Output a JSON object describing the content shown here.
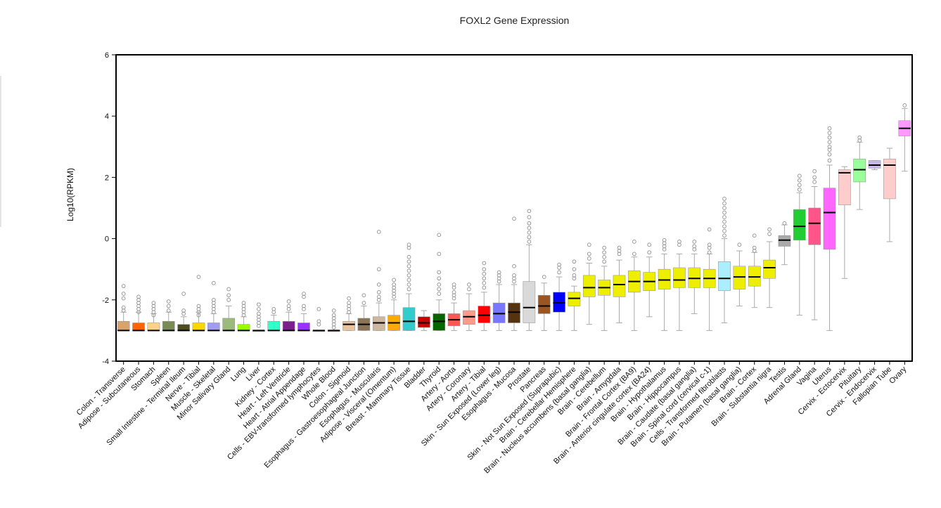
{
  "chart_data": {
    "type": "box",
    "title": "FOXL2 Gene Expression",
    "xlabel": "",
    "ylabel": "Log10(RPKM)",
    "ylim": [
      -4,
      6
    ],
    "yticks": [
      -4,
      -2,
      0,
      2,
      4,
      6
    ],
    "grid": false,
    "legend": "none",
    "series": [
      {
        "name": "Colon - Transverse",
        "color": "#d9a46c",
        "q1": -3.0,
        "median": -3.0,
        "q3": -2.7,
        "whisker_low": -3.0,
        "whisker_high": -2.4,
        "outliers": [
          -1.55,
          -1.8,
          -1.95,
          -2.25,
          -2.35
        ]
      },
      {
        "name": "Adipose - Subcutaneous",
        "color": "#ff6600",
        "q1": -3.0,
        "median": -3.0,
        "q3": -2.75,
        "whisker_low": -3.0,
        "whisker_high": -2.4,
        "outliers": [
          -1.9,
          -2.0,
          -2.1,
          -2.2,
          -2.3,
          -2.4
        ]
      },
      {
        "name": "Stomach",
        "color": "#ffd18a",
        "q1": -3.0,
        "median": -3.0,
        "q3": -2.75,
        "whisker_low": -3.0,
        "whisker_high": -2.45,
        "outliers": [
          -2.1,
          -2.2,
          -2.3,
          -2.4,
          -2.5
        ]
      },
      {
        "name": "Spleen",
        "color": "#7a8c55",
        "q1": -3.0,
        "median": -3.0,
        "q3": -2.7,
        "whisker_low": -3.0,
        "whisker_high": -2.4,
        "outliers": [
          -2.05,
          -2.2,
          -2.35
        ]
      },
      {
        "name": "Small Intestine - Terminal Ileum",
        "color": "#4d4d1f",
        "q1": -3.0,
        "median": -3.0,
        "q3": -2.8,
        "whisker_low": -3.0,
        "whisker_high": -2.55,
        "outliers": [
          -1.8,
          -2.35,
          -2.45
        ]
      },
      {
        "name": "Nerve - Tibial",
        "color": "#ffd700",
        "q1": -3.0,
        "median": -3.0,
        "q3": -2.75,
        "whisker_low": -3.0,
        "whisker_high": -2.4,
        "outliers": [
          -1.25,
          -2.2,
          -2.3,
          -2.4,
          -2.5
        ]
      },
      {
        "name": "Muscle - Skeletal",
        "color": "#a09cf0",
        "q1": -3.0,
        "median": -3.0,
        "q3": -2.75,
        "whisker_low": -3.0,
        "whisker_high": -2.45,
        "outliers": [
          -1.45,
          -2.0,
          -2.1,
          -2.2,
          -2.3,
          -2.4
        ]
      },
      {
        "name": "Minor Salivary Gland",
        "color": "#9bbb7a",
        "q1": -3.0,
        "median": -3.0,
        "q3": -2.6,
        "whisker_low": -3.0,
        "whisker_high": -2.2,
        "outliers": [
          -1.65,
          -1.85,
          -2.0
        ]
      },
      {
        "name": "Lung",
        "color": "#99ff00",
        "q1": -3.0,
        "median": -3.0,
        "q3": -2.8,
        "whisker_low": -3.0,
        "whisker_high": -2.55,
        "outliers": [
          -2.1,
          -2.2,
          -2.3,
          -2.4,
          -2.5
        ]
      },
      {
        "name": "Liver",
        "color": "#c0c0a0",
        "q1": -3.0,
        "median": -3.0,
        "q3": -3.0,
        "whisker_low": -3.0,
        "whisker_high": -3.0,
        "outliers": [
          -2.15,
          -2.3,
          -2.45,
          -2.55,
          -2.65,
          -2.75,
          -2.85
        ]
      },
      {
        "name": "Kidney - Cortex",
        "color": "#33ffcc",
        "q1": -3.0,
        "median": -3.0,
        "q3": -2.7,
        "whisker_low": -3.0,
        "whisker_high": -2.5,
        "outliers": [
          -2.3,
          -2.4
        ]
      },
      {
        "name": "Heart - Left Ventricle",
        "color": "#7a1f8c",
        "q1": -3.0,
        "median": -3.0,
        "q3": -2.7,
        "whisker_low": -3.0,
        "whisker_high": -2.4,
        "outliers": [
          -2.05,
          -2.2,
          -2.3
        ]
      },
      {
        "name": "Heart - Atrial Appendage",
        "color": "#9933ff",
        "q1": -3.0,
        "median": -3.0,
        "q3": -2.75,
        "whisker_low": -3.0,
        "whisker_high": -2.45,
        "outliers": [
          -1.8,
          -1.9,
          -2.2,
          -2.3
        ]
      },
      {
        "name": "Cells - EBV-transformed lymphocytes",
        "color": "#ff66cc",
        "q1": -3.0,
        "median": -3.0,
        "q3": -3.0,
        "whisker_low": -3.0,
        "whisker_high": -3.0,
        "outliers": [
          -2.3,
          -2.7,
          -2.8
        ]
      },
      {
        "name": "Whole Blood",
        "color": "#ff33ff",
        "q1": -3.0,
        "median": -3.0,
        "q3": -3.0,
        "whisker_low": -3.0,
        "whisker_high": -3.0,
        "outliers": [
          -2.35,
          -2.5,
          -2.6,
          -2.7,
          -2.8,
          -2.9
        ]
      },
      {
        "name": "Colon - Sigmoid",
        "color": "#e8c39e",
        "q1": -3.0,
        "median": -2.8,
        "q3": -2.7,
        "whisker_low": -3.0,
        "whisker_high": -2.45,
        "outliers": [
          -1.95,
          -2.1,
          -2.2,
          -2.3,
          -2.4
        ]
      },
      {
        "name": "Esophagus - Gastroesophageal Junction",
        "color": "#8b7355",
        "q1": -3.0,
        "median": -2.8,
        "q3": -2.6,
        "whisker_low": -3.0,
        "whisker_high": -2.2,
        "outliers": [
          -1.85,
          -2.1
        ]
      },
      {
        "name": "Esophagus - Muscularis",
        "color": "#cdb79e",
        "q1": -3.0,
        "median": -2.75,
        "q3": -2.55,
        "whisker_low": -3.0,
        "whisker_high": -2.1,
        "outliers": [
          0.22,
          -1.0,
          -1.5,
          -1.75,
          -1.9,
          -2.0
        ]
      },
      {
        "name": "Adipose - Visceral (Omentum)",
        "color": "#ffaa00",
        "q1": -3.0,
        "median": -2.75,
        "q3": -2.5,
        "whisker_low": -3.0,
        "whisker_high": -2.0,
        "outliers": [
          -1.35,
          -1.5,
          -1.6,
          -1.7,
          -1.8,
          -1.9
        ]
      },
      {
        "name": "Breast - Mammary Tissue",
        "color": "#33cccc",
        "q1": -3.0,
        "median": -2.7,
        "q3": -2.25,
        "whisker_low": -3.0,
        "whisker_high": -1.8,
        "outliers": [
          -0.2,
          -0.3,
          -0.6,
          -0.75,
          -0.9,
          -1.05,
          -1.2,
          -1.35,
          -1.5,
          -1.65
        ]
      },
      {
        "name": "Bladder",
        "color": "#cc0000",
        "q1": -2.9,
        "median": -2.75,
        "q3": -2.55,
        "whisker_low": -3.0,
        "whisker_high": -2.35,
        "outliers": []
      },
      {
        "name": "Thyroid",
        "color": "#006600",
        "q1": -3.0,
        "median": -2.7,
        "q3": -2.45,
        "whisker_low": -3.0,
        "whisker_high": -2.0,
        "outliers": [
          0.12,
          -0.5,
          -1.1,
          -1.3,
          -1.5,
          -1.65,
          -1.8
        ]
      },
      {
        "name": "Artery - Aorta",
        "color": "#ff5555",
        "q1": -2.85,
        "median": -2.65,
        "q3": -2.45,
        "whisker_low": -3.0,
        "whisker_high": -2.1,
        "outliers": [
          -1.5,
          -1.6,
          -1.75,
          -1.85,
          -1.95
        ]
      },
      {
        "name": "Artery - Coronary",
        "color": "#ff9988",
        "q1": -2.8,
        "median": -2.55,
        "q3": -2.35,
        "whisker_low": -3.0,
        "whisker_high": -1.8,
        "outliers": [
          -1.5,
          -1.65
        ]
      },
      {
        "name": "Artery - Tibial",
        "color": "#ff0000",
        "q1": -2.75,
        "median": -2.5,
        "q3": -2.2,
        "whisker_low": -3.0,
        "whisker_high": -1.75,
        "outliers": [
          -0.8,
          -1.0,
          -1.15,
          -1.3,
          -1.45,
          -1.6
        ]
      },
      {
        "name": "Skin - Sun Exposed (Lower leg)",
        "color": "#7777ff",
        "q1": -2.75,
        "median": -2.45,
        "q3": -2.1,
        "whisker_low": -3.0,
        "whisker_high": -1.5,
        "outliers": [
          -1.1,
          -1.2,
          -1.3,
          -1.4
        ]
      },
      {
        "name": "Esophagus - Mucosa",
        "color": "#553311",
        "q1": -2.75,
        "median": -2.4,
        "q3": -2.1,
        "whisker_low": -3.0,
        "whisker_high": -1.5,
        "outliers": [
          0.65,
          -0.9,
          -1.2,
          -1.3,
          -1.4
        ]
      },
      {
        "name": "Prostate",
        "color": "#d9d9d9",
        "q1": -2.75,
        "median": -2.25,
        "q3": -1.4,
        "whisker_low": -3.0,
        "whisker_high": -0.2,
        "outliers": [
          0.9,
          0.7,
          0.5,
          0.35,
          0.2,
          0.05,
          -0.1
        ]
      },
      {
        "name": "Pancreas",
        "color": "#995522",
        "q1": -2.45,
        "median": -2.2,
        "q3": -1.85,
        "whisker_low": -3.0,
        "whisker_high": -1.45,
        "outliers": [
          -1.25
        ]
      },
      {
        "name": "Skin - Not Sun Exposed (Suprapubic)",
        "color": "#0000ff",
        "q1": -2.4,
        "median": -2.1,
        "q3": -1.75,
        "whisker_low": -3.0,
        "whisker_high": -1.25,
        "outliers": [
          -0.85,
          -0.95,
          -1.1
        ]
      },
      {
        "name": "Brain - Cerebellar Hemisphere",
        "color": "#eeee00",
        "q1": -2.2,
        "median": -1.95,
        "q3": -1.75,
        "whisker_low": -3.0,
        "whisker_high": -1.55,
        "outliers": [
          -0.75,
          -1.0,
          -1.2,
          -1.3
        ]
      },
      {
        "name": "Brain - Nucleus accumbens (basal ganglia)",
        "color": "#eeee00",
        "q1": -1.9,
        "median": -1.6,
        "q3": -1.2,
        "whisker_low": -2.8,
        "whisker_high": -0.8,
        "outliers": [
          -0.2,
          -0.5,
          -0.65
        ]
      },
      {
        "name": "Brain - Cerebellum",
        "color": "#eeee00",
        "q1": -1.85,
        "median": -1.6,
        "q3": -1.35,
        "whisker_low": -3.0,
        "whisker_high": -0.9,
        "outliers": [
          -0.3,
          -0.45,
          -0.6,
          -0.75
        ]
      },
      {
        "name": "Brain - Amygdala",
        "color": "#eeee00",
        "q1": -1.9,
        "median": -1.5,
        "q3": -1.2,
        "whisker_low": -2.75,
        "whisker_high": -0.7,
        "outliers": [
          -0.3,
          -0.4,
          -0.5
        ]
      },
      {
        "name": "Brain - Frontal Cortex (BA9)",
        "color": "#eeee00",
        "q1": -1.75,
        "median": -1.4,
        "q3": -1.05,
        "whisker_low": -3.0,
        "whisker_high": -0.6,
        "outliers": [
          -0.1,
          -0.5
        ]
      },
      {
        "name": "Brain - Anterior cingulate cortex (BA24)",
        "color": "#eeee00",
        "q1": -1.7,
        "median": -1.4,
        "q3": -1.1,
        "whisker_low": -2.55,
        "whisker_high": -0.6,
        "outliers": [
          -0.2,
          -0.45
        ]
      },
      {
        "name": "Brain - Hypothalamus",
        "color": "#eeee00",
        "q1": -1.65,
        "median": -1.35,
        "q3": -1.0,
        "whisker_low": -3.0,
        "whisker_high": -0.5,
        "outliers": [
          -0.05,
          -0.15,
          -0.25,
          -0.35
        ]
      },
      {
        "name": "Brain - Hippocampus",
        "color": "#eeee00",
        "q1": -1.6,
        "median": -1.35,
        "q3": -0.95,
        "whisker_low": -3.0,
        "whisker_high": -0.5,
        "outliers": [
          -0.1,
          -0.2
        ]
      },
      {
        "name": "Brain - Caudate (basal ganglia)",
        "color": "#eeee00",
        "q1": -1.6,
        "median": -1.3,
        "q3": -0.95,
        "whisker_low": -2.45,
        "whisker_high": -0.5,
        "outliers": [
          -0.1,
          -0.25,
          -0.35
        ]
      },
      {
        "name": "Brain - Spinal cord (cervical c-1)",
        "color": "#eeee00",
        "q1": -1.6,
        "median": -1.3,
        "q3": -1.0,
        "whisker_low": -3.0,
        "whisker_high": -0.5,
        "outliers": [
          0.3,
          -0.2,
          -0.3,
          -0.45
        ]
      },
      {
        "name": "Cells - Transformed fibroblasts",
        "color": "#aaeeff",
        "q1": -1.7,
        "median": -1.3,
        "q3": -0.75,
        "whisker_low": -2.75,
        "whisker_high": 0.0,
        "outliers": [
          1.3,
          1.15,
          1.0,
          0.85,
          0.7,
          0.55,
          0.4,
          0.25,
          0.1
        ]
      },
      {
        "name": "Brain - Putamen (basal ganglia)",
        "color": "#eeee00",
        "q1": -1.65,
        "median": -1.25,
        "q3": -0.9,
        "whisker_low": -2.2,
        "whisker_high": -0.4,
        "outliers": [
          -0.2
        ]
      },
      {
        "name": "Brain - Cortex",
        "color": "#eeee00",
        "q1": -1.55,
        "median": -1.25,
        "q3": -0.9,
        "whisker_low": -2.25,
        "whisker_high": -0.45,
        "outliers": [
          0.1,
          -0.3,
          -0.4
        ]
      },
      {
        "name": "Brain - Substantia nigra",
        "color": "#eeee00",
        "q1": -1.3,
        "median": -0.95,
        "q3": -0.7,
        "whisker_low": -2.25,
        "whisker_high": -0.1,
        "outliers": [
          0.3,
          0.15
        ]
      },
      {
        "name": "Testis",
        "color": "#aaaaaa",
        "q1": -0.25,
        "median": -0.05,
        "q3": 0.1,
        "whisker_low": -0.85,
        "whisker_high": 0.45,
        "outliers": [
          0.5
        ]
      },
      {
        "name": "Adrenal Gland",
        "color": "#22cc33",
        "q1": -0.05,
        "median": 0.4,
        "q3": 0.95,
        "whisker_low": -2.5,
        "whisker_high": 1.5,
        "outliers": [
          2.05,
          1.9,
          1.75,
          1.6
        ]
      },
      {
        "name": "Vagina",
        "color": "#ff5588",
        "q1": -0.2,
        "median": 0.5,
        "q3": 1.0,
        "whisker_low": -2.65,
        "whisker_high": 1.7,
        "outliers": [
          2.2,
          2.0,
          1.85
        ]
      },
      {
        "name": "Uterus",
        "color": "#ff66ff",
        "q1": -0.35,
        "median": 0.85,
        "q3": 1.65,
        "whisker_low": -3.0,
        "whisker_high": 2.4,
        "outliers": [
          3.6,
          3.45,
          3.3,
          3.15,
          3.0,
          2.9,
          2.75,
          2.55
        ]
      },
      {
        "name": "Cervix - Ectocervix",
        "color": "#ffcccc",
        "q1": 1.1,
        "median": 2.15,
        "q3": 2.25,
        "whisker_low": -1.3,
        "whisker_high": 2.35,
        "outliers": []
      },
      {
        "name": "Pituitary",
        "color": "#99ff99",
        "q1": 1.85,
        "median": 2.25,
        "q3": 2.6,
        "whisker_low": 0.95,
        "whisker_high": 3.15,
        "outliers": [
          3.3,
          3.2
        ]
      },
      {
        "name": "Cervix - Endocervix",
        "color": "#c8b8e8",
        "q1": 2.3,
        "median": 2.4,
        "q3": 2.55,
        "whisker_low": 2.25,
        "whisker_high": 2.55,
        "outliers": []
      },
      {
        "name": "Fallopian Tube",
        "color": "#ffcccc",
        "q1": 1.3,
        "median": 2.4,
        "q3": 2.6,
        "whisker_low": -0.1,
        "whisker_high": 2.95,
        "outliers": []
      },
      {
        "name": "Ovary",
        "color": "#ff99ff",
        "q1": 3.35,
        "median": 3.6,
        "q3": 3.85,
        "whisker_low": 2.2,
        "whisker_high": 4.25,
        "outliers": [
          4.35
        ]
      }
    ]
  }
}
